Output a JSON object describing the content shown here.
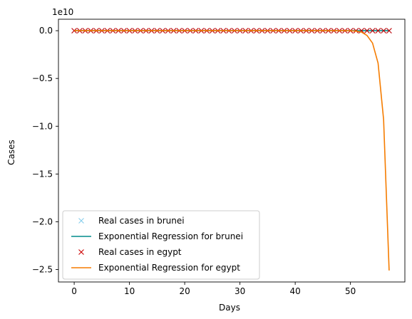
{
  "chart_data": {
    "type": "line",
    "xlabel": "Days",
    "ylabel": "Cases",
    "y_offset_label": "1e10",
    "xlim": [
      -2.85,
      59.85
    ],
    "ylim": [
      -2.63,
      0.12
    ],
    "y_scale_factor": 10000000000,
    "x_ticks": [
      0,
      10,
      20,
      30,
      40,
      50
    ],
    "x_tick_labels": [
      "0",
      "10",
      "20",
      "30",
      "40",
      "50"
    ],
    "y_ticks": [
      0.0,
      -0.5,
      -1.0,
      -1.5,
      -2.0,
      -2.5
    ],
    "y_tick_labels": [
      "0.0",
      "−0.5",
      "−1.0",
      "−1.5",
      "−2.0",
      "−2.5"
    ],
    "legend_position": "lower-left",
    "series": [
      {
        "name": "Real cases in brunei",
        "kind": "markers",
        "marker": "x",
        "color": "#87ceeb",
        "x": [
          0,
          1,
          2,
          3,
          4,
          5,
          6,
          7,
          8,
          9,
          10,
          11,
          12,
          13,
          14,
          15,
          16,
          17,
          18,
          19,
          20,
          21,
          22,
          23,
          24,
          25,
          26,
          27,
          28,
          29,
          30,
          31,
          32,
          33,
          34,
          35,
          36,
          37,
          38,
          39,
          40,
          41,
          42,
          43,
          44,
          45,
          46,
          47,
          48,
          49,
          50,
          51,
          52,
          53,
          54,
          55,
          56,
          57
        ],
        "y": [
          0,
          0,
          0,
          0,
          0,
          0,
          0,
          0,
          0,
          0,
          0,
          0,
          0,
          0,
          0,
          0,
          0,
          0,
          0,
          0,
          0,
          0,
          0,
          0,
          0,
          0,
          0,
          0,
          0,
          0,
          0,
          0,
          0,
          0,
          0,
          0,
          0,
          0,
          0,
          0,
          0,
          0,
          0,
          0,
          0,
          0,
          0,
          0,
          0,
          0,
          0,
          0,
          0,
          0,
          0,
          0,
          0,
          0
        ]
      },
      {
        "name": "Exponential Regression for brunei",
        "kind": "line",
        "color": "#008b8b",
        "x": [
          0,
          57
        ],
        "y": [
          0,
          0
        ]
      },
      {
        "name": "Real cases in egypt",
        "kind": "markers",
        "marker": "x",
        "color": "#cc0000",
        "x": [
          0,
          1,
          2,
          3,
          4,
          5,
          6,
          7,
          8,
          9,
          10,
          11,
          12,
          13,
          14,
          15,
          16,
          17,
          18,
          19,
          20,
          21,
          22,
          23,
          24,
          25,
          26,
          27,
          28,
          29,
          30,
          31,
          32,
          33,
          34,
          35,
          36,
          37,
          38,
          39,
          40,
          41,
          42,
          43,
          44,
          45,
          46,
          47,
          48,
          49,
          50,
          51,
          52,
          53,
          54,
          55,
          56,
          57
        ],
        "y": [
          0,
          0,
          0,
          0,
          0,
          0,
          0,
          0,
          0,
          0,
          0,
          0,
          0,
          0,
          0,
          0,
          0,
          0,
          0,
          0,
          0,
          0,
          0,
          0,
          0,
          0,
          0,
          0,
          0,
          0,
          0,
          0,
          0,
          0,
          0,
          0,
          0,
          0,
          0,
          0,
          0,
          0,
          0,
          0,
          0,
          0,
          0,
          0,
          0,
          0,
          0,
          0,
          0,
          0,
          0,
          0,
          0,
          0
        ]
      },
      {
        "name": "Exponential Regression for egypt",
        "kind": "line",
        "color": "#f57c00",
        "x": [
          0,
          49,
          50,
          51,
          52,
          53,
          54,
          55,
          56,
          57
        ],
        "y": [
          0,
          0,
          -0.001,
          -0.004,
          -0.015,
          -0.05,
          -0.13,
          -0.34,
          -0.93,
          -2.51
        ]
      }
    ]
  }
}
